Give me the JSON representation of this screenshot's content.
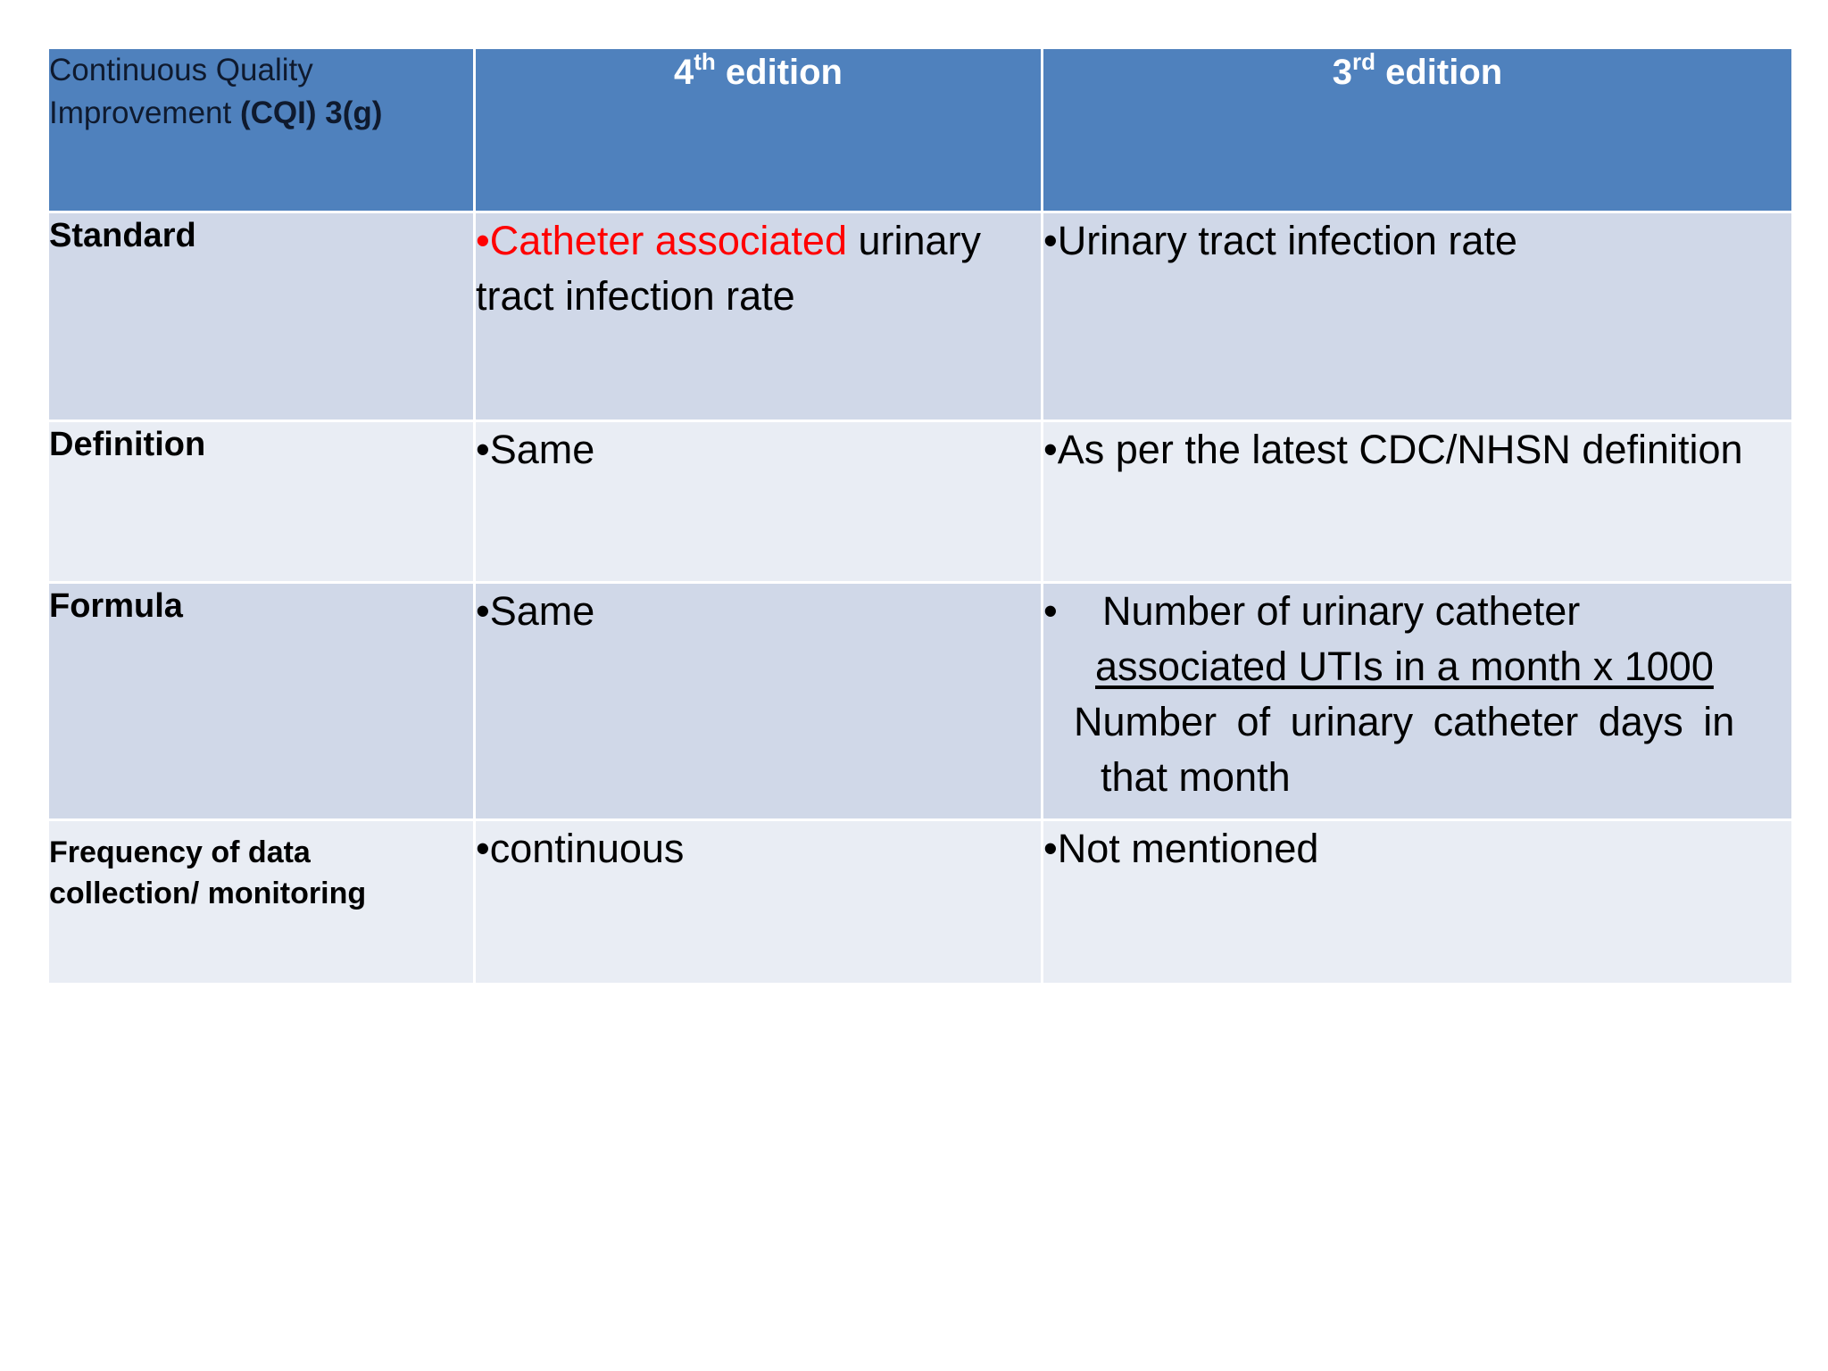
{
  "table": {
    "header": {
      "cqi_line1": "Continuous Quality",
      "cqi_line2_plain": "Improvement ",
      "cqi_line2_bold": "(CQI) 3(g)",
      "col2_num": "4",
      "col2_sup": "th",
      "col2_word": " edition",
      "col3_num": "3",
      "col3_sup": "rd",
      "col3_word": " edition"
    },
    "rows": {
      "standard": {
        "label": "Standard",
        "col2_red": "•Catheter associated",
        "col2_rest": " urinary tract infection rate",
        "col3": "•Urinary tract infection rate"
      },
      "definition": {
        "label": "Definition",
        "col2": "•Same",
        "col3": "•As per the latest CDC/NHSN definition"
      },
      "formula": {
        "label": "Formula",
        "col2": "•Same",
        "col3_bullet": "•",
        "col3_line1": "Number of urinary catheter",
        "col3_line2": "associated UTIs in a month  x  1000",
        "col3_line3": "Number of urinary catheter days in",
        "col3_line4": "that  month"
      },
      "frequency": {
        "label_line1": "Frequency  of data",
        "label_line2": "collection/ monitoring",
        "col2": "•continuous",
        "col3": "•Not mentioned"
      }
    }
  },
  "colors": {
    "header_bg": "#4f81bd",
    "row_dark": "#d0d8e8",
    "row_light": "#e9edf4",
    "highlight": "#ff0000"
  }
}
